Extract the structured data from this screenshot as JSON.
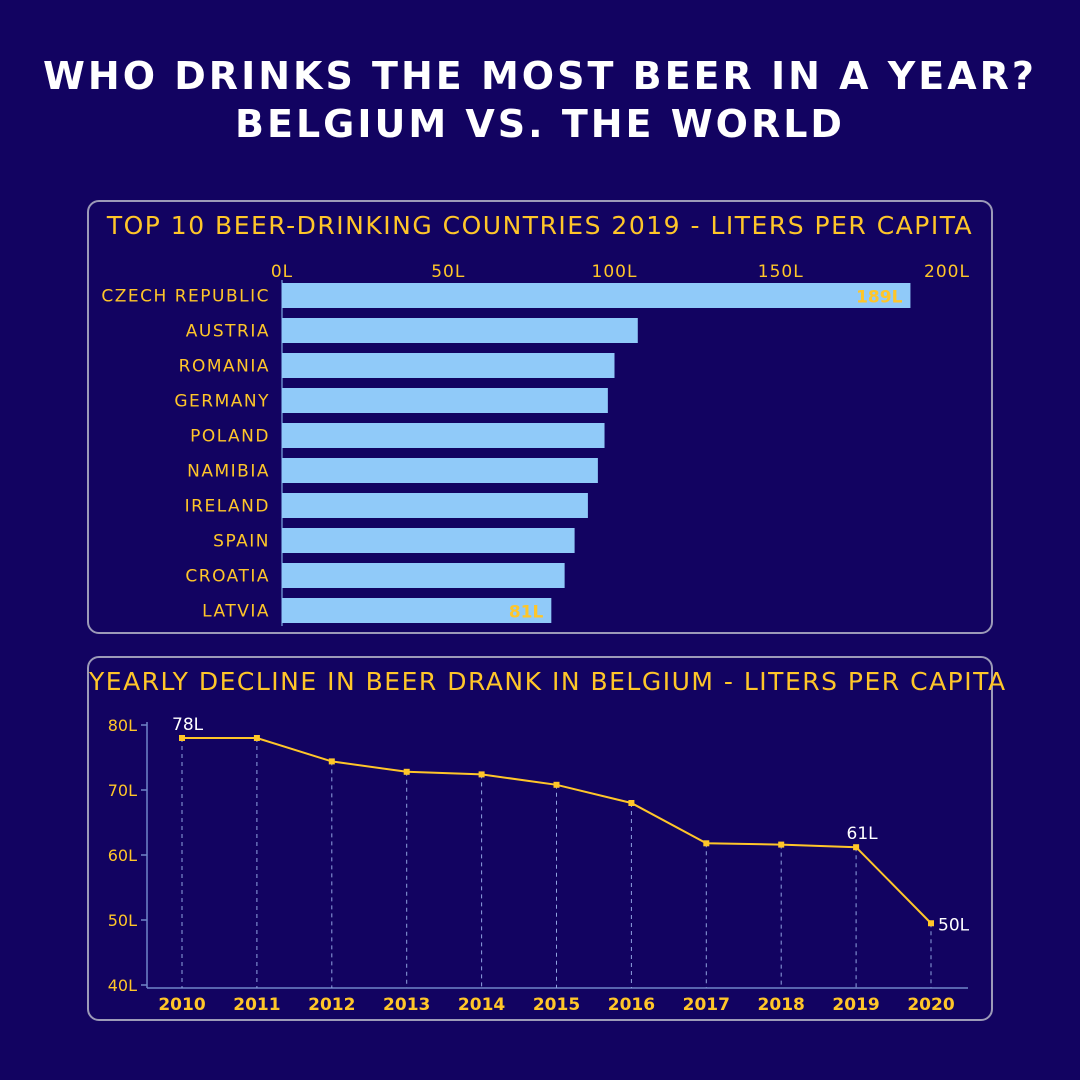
{
  "title_line1": "WHO DRINKS THE MOST BEER IN A YEAR?",
  "title_line2": "BELGIUM VS. THE WORLD",
  "colors": {
    "background": "#120361",
    "bar": "#90caf9",
    "accent": "#ffc629",
    "line": "#ffc629",
    "text": "#ffffff",
    "border": "#9c9ab8"
  },
  "chart_data": [
    {
      "type": "bar",
      "orientation": "horizontal",
      "title": "TOP 10 BEER-DRINKING COUNTRIES 2019 - LITERS PER CAPITA",
      "categories": [
        "CZECH REPUBLIC",
        "AUSTRIA",
        "ROMANIA",
        "GERMANY",
        "POLAND",
        "NAMIBIA",
        "IRELAND",
        "SPAIN",
        "CROATIA",
        "LATVIA"
      ],
      "values": [
        189,
        107,
        100,
        98,
        97,
        95,
        92,
        88,
        85,
        81
      ],
      "data_labels": {
        "0": "189L",
        "9": "81L"
      },
      "xlim": [
        0,
        200
      ],
      "xticks": [
        0,
        50,
        100,
        150,
        200
      ],
      "xtick_labels": [
        "0L",
        "50L",
        "100L",
        "150L",
        "200L"
      ],
      "axis_position": "top",
      "grid": false
    },
    {
      "type": "line",
      "title": "YEARLY DECLINE IN BEER DRANK IN BELGIUM - LITERS PER CAPITA",
      "x": [
        "2010",
        "2011",
        "2012",
        "2013",
        "2014",
        "2015",
        "2016",
        "2017",
        "2018",
        "2019",
        "2020"
      ],
      "values": [
        78,
        78,
        74.4,
        72.8,
        72.4,
        70.8,
        68,
        61.8,
        61.6,
        61.2,
        49.5
      ],
      "data_labels": {
        "0": "78L",
        "9": "61L",
        "10": "50L"
      },
      "ylim": [
        40,
        80
      ],
      "yticks": [
        40,
        50,
        60,
        70,
        80
      ],
      "ytick_labels": [
        "40L",
        "50L",
        "60L",
        "70L",
        "80L"
      ],
      "grid": "vertical dashed drop lines"
    }
  ]
}
